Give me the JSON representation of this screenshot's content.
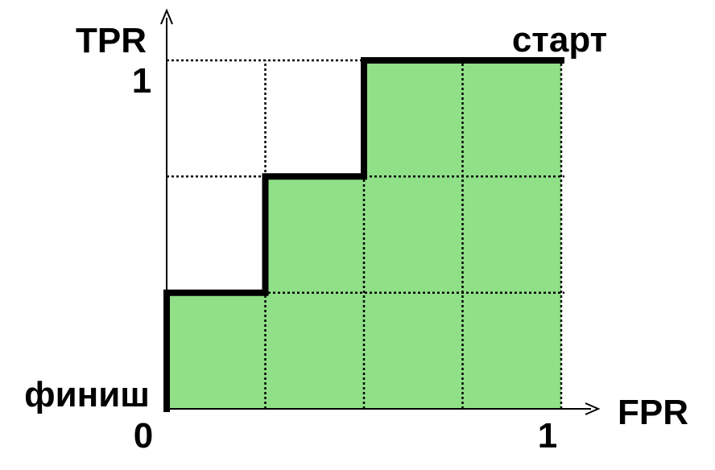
{
  "chart_data": {
    "type": "area",
    "xlabel": "FPR",
    "ylabel": "TPR",
    "xlim": [
      0,
      1
    ],
    "ylim": [
      0,
      1
    ],
    "step_x": [
      0,
      0,
      0.25,
      0.25,
      0.5,
      0.5,
      1
    ],
    "step_y": [
      0,
      0.333,
      0.333,
      0.667,
      0.667,
      1,
      1
    ],
    "grid": true,
    "grid_x": [
      0.25,
      0.5,
      0.75,
      1
    ],
    "grid_y": [
      0.333,
      0.667,
      1
    ],
    "fill_color": "#90e088",
    "line_color": "#000000",
    "ticks": {
      "x_zero": "0",
      "x_one": "1",
      "y_one": "1"
    },
    "annotations": {
      "start": "старт",
      "finish": "финиш"
    }
  }
}
